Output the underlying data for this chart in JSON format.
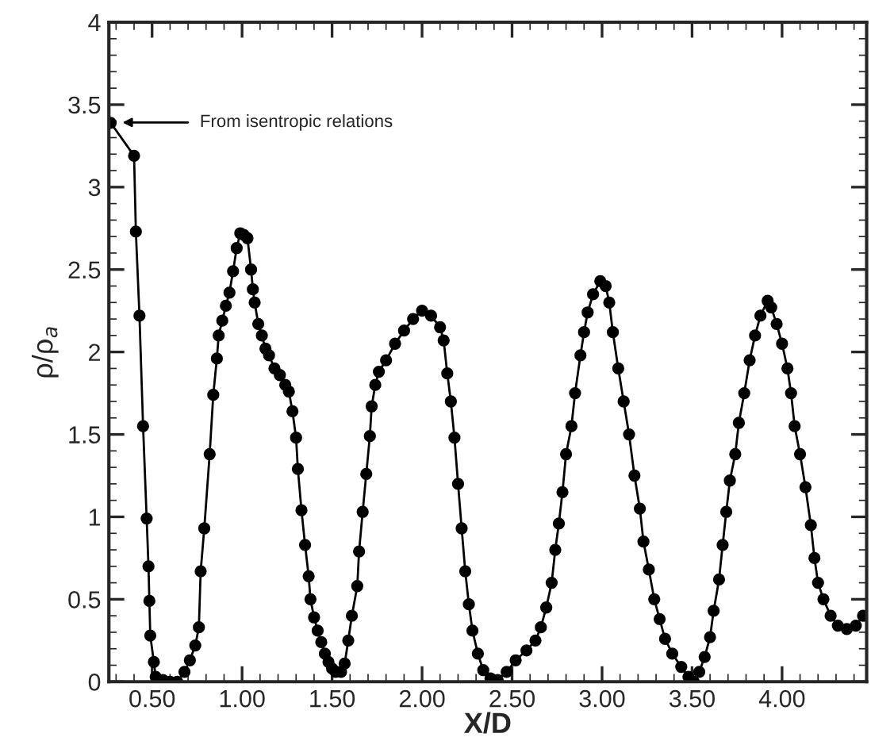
{
  "chart_data": {
    "type": "line",
    "xlabel": "X/D",
    "ylabel": "ρ/ρ$_{a}$",
    "marker": "circle",
    "line_style": "solid",
    "grid": false,
    "legend": false,
    "xlim": [
      0.26,
      4.47
    ],
    "ylim": [
      0,
      4
    ],
    "xticks": [
      {
        "value": 0.5,
        "label": "0.50"
      },
      {
        "value": 1.0,
        "label": "1.00"
      },
      {
        "value": 1.5,
        "label": "1.50"
      },
      {
        "value": 2.0,
        "label": "2.00"
      },
      {
        "value": 2.5,
        "label": "2.50"
      },
      {
        "value": 3.0,
        "label": "3.00"
      },
      {
        "value": 3.5,
        "label": "3.50"
      },
      {
        "value": 4.0,
        "label": "4.00"
      }
    ],
    "yticks": [
      0,
      0.5,
      1,
      1.5,
      2,
      2.5,
      3,
      3.5,
      4
    ],
    "annotations": [
      "From isentropic relations"
    ],
    "series": [
      {
        "color": "#000000",
        "x": [
          0.27,
          0.4,
          0.41,
          0.43,
          0.45,
          0.47,
          0.48,
          0.485,
          0.49,
          0.51,
          0.52,
          0.56,
          0.6,
          0.64,
          0.68,
          0.71,
          0.74,
          0.76,
          0.77,
          0.79,
          0.82,
          0.84,
          0.86,
          0.87,
          0.89,
          0.91,
          0.93,
          0.95,
          0.97,
          0.99,
          1.01,
          1.03,
          1.05,
          1.06,
          1.07,
          1.09,
          1.11,
          1.13,
          1.15,
          1.18,
          1.21,
          1.24,
          1.26,
          1.28,
          1.3,
          1.31,
          1.33,
          1.35,
          1.37,
          1.38,
          1.4,
          1.42,
          1.44,
          1.46,
          1.48,
          1.5,
          1.52,
          1.55,
          1.57,
          1.59,
          1.61,
          1.64,
          1.65,
          1.67,
          1.69,
          1.71,
          1.72,
          1.74,
          1.76,
          1.8,
          1.85,
          1.9,
          1.95,
          2.0,
          2.05,
          2.1,
          2.12,
          2.14,
          2.16,
          2.18,
          2.2,
          2.22,
          2.24,
          2.26,
          2.28,
          2.31,
          2.34,
          2.38,
          2.42,
          2.47,
          2.52,
          2.58,
          2.63,
          2.66,
          2.69,
          2.72,
          2.74,
          2.76,
          2.78,
          2.8,
          2.83,
          2.85,
          2.88,
          2.9,
          2.92,
          2.95,
          2.99,
          3.02,
          3.04,
          3.06,
          3.09,
          3.12,
          3.15,
          3.18,
          3.21,
          3.23,
          3.26,
          3.29,
          3.32,
          3.35,
          3.39,
          3.44,
          3.48,
          3.51,
          3.54,
          3.57,
          3.6,
          3.62,
          3.65,
          3.67,
          3.69,
          3.71,
          3.74,
          3.76,
          3.79,
          3.82,
          3.85,
          3.88,
          3.92,
          3.94,
          3.97,
          4.0,
          4.03,
          4.05,
          4.07,
          4.1,
          4.13,
          4.16,
          4.18,
          4.2,
          4.23,
          4.27,
          4.31,
          4.36,
          4.41,
          4.45
        ],
        "values": [
          3.39,
          3.19,
          2.73,
          2.22,
          1.55,
          0.99,
          0.7,
          0.49,
          0.28,
          0.12,
          0.03,
          0.01,
          0.0,
          0.0,
          0.06,
          0.13,
          0.22,
          0.33,
          0.67,
          0.93,
          1.38,
          1.74,
          1.96,
          2.1,
          2.19,
          2.28,
          2.36,
          2.49,
          2.63,
          2.72,
          2.71,
          2.69,
          2.5,
          2.38,
          2.3,
          2.17,
          2.1,
          2.02,
          1.98,
          1.9,
          1.86,
          1.8,
          1.76,
          1.64,
          1.48,
          1.29,
          1.04,
          0.83,
          0.64,
          0.5,
          0.39,
          0.31,
          0.24,
          0.17,
          0.12,
          0.08,
          0.06,
          0.06,
          0.11,
          0.25,
          0.4,
          0.58,
          0.79,
          1.03,
          1.26,
          1.49,
          1.67,
          1.8,
          1.88,
          1.95,
          2.05,
          2.13,
          2.2,
          2.25,
          2.22,
          2.15,
          2.07,
          1.87,
          1.7,
          1.48,
          1.2,
          0.93,
          0.67,
          0.47,
          0.31,
          0.17,
          0.07,
          0.02,
          0.01,
          0.06,
          0.13,
          0.19,
          0.25,
          0.33,
          0.45,
          0.6,
          0.8,
          0.96,
          1.15,
          1.38,
          1.55,
          1.75,
          1.98,
          2.12,
          2.24,
          2.35,
          2.43,
          2.4,
          2.3,
          2.12,
          1.9,
          1.7,
          1.5,
          1.25,
          1.05,
          0.85,
          0.68,
          0.5,
          0.38,
          0.26,
          0.17,
          0.09,
          0.03,
          0.0,
          0.06,
          0.15,
          0.27,
          0.43,
          0.62,
          0.83,
          1.03,
          1.22,
          1.38,
          1.57,
          1.75,
          1.95,
          2.1,
          2.22,
          2.31,
          2.27,
          2.17,
          2.05,
          1.9,
          1.75,
          1.55,
          1.38,
          1.18,
          0.95,
          0.75,
          0.6,
          0.5,
          0.4,
          0.34,
          0.32,
          0.34,
          0.4
        ]
      }
    ]
  }
}
